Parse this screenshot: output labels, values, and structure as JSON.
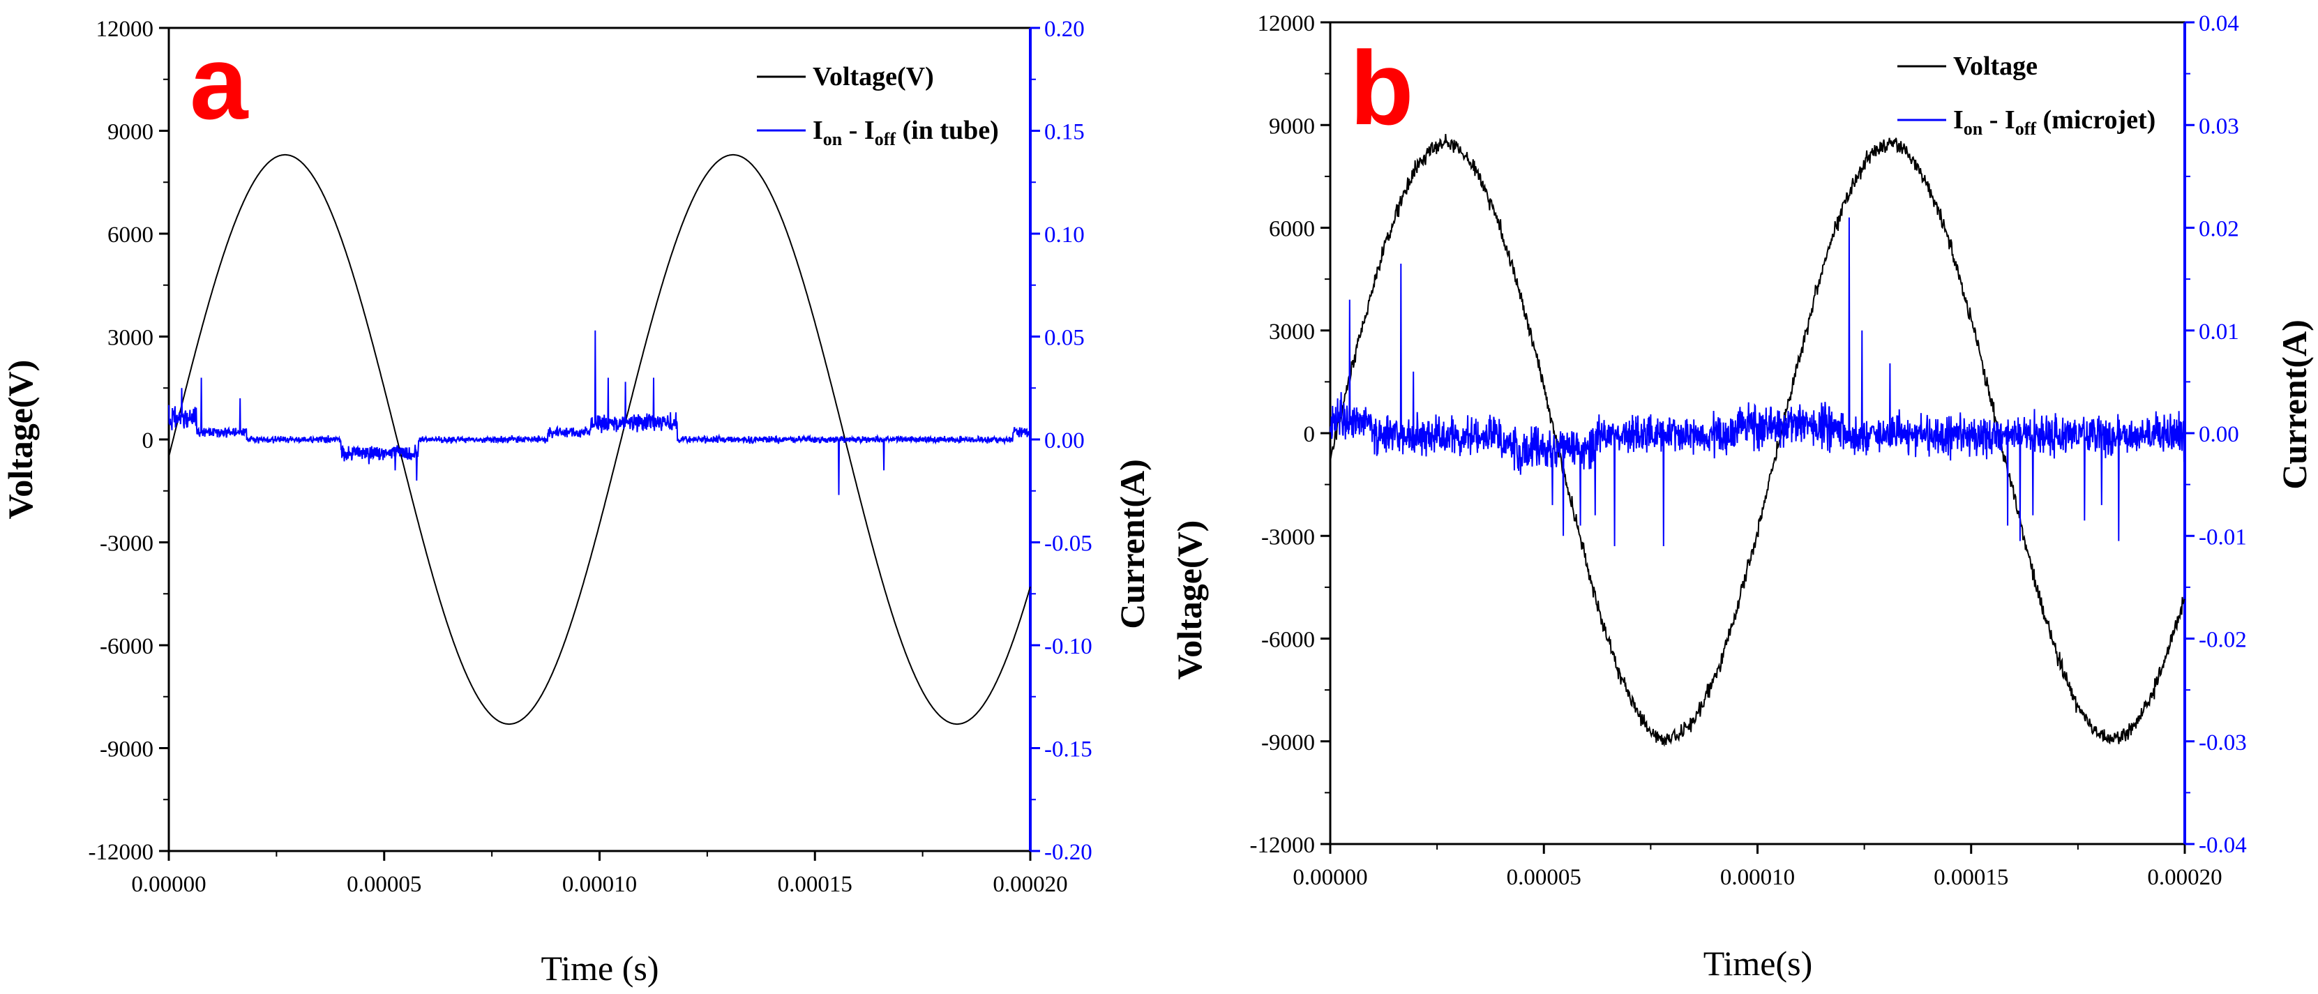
{
  "chart_data": [
    {
      "panel_label": "a",
      "type": "line",
      "xlabel": "Time (s)",
      "ylabel_left": "Voltage(V)",
      "ylabel_right": "Current(A)",
      "xlim": [
        0,
        0.0002
      ],
      "ylim_left": [
        -12000,
        12000
      ],
      "ylim_right": [
        -0.2,
        0.2
      ],
      "x_ticks": [
        "0.00000",
        "0.00005",
        "0.00010",
        "0.00015",
        "0.00020"
      ],
      "y_ticks_left": [
        "12000",
        "9000",
        "6000",
        "3000",
        "0",
        "-3000",
        "-6000",
        "-9000",
        "-12000"
      ],
      "y_ticks_right": [
        "0.20",
        "0.15",
        "0.10",
        "0.05",
        "0.00",
        "-0.05",
        "-0.10",
        "-0.15",
        "-0.20"
      ],
      "legend": {
        "placement": "top-right",
        "voltage_label": "Voltage(V)",
        "current_label": {
          "base": "I",
          "sub1": "on",
          "mid": " - I",
          "sub2": "off",
          "tail": " (in tube)"
        }
      },
      "series": [
        {
          "name": "Voltage(V)",
          "axis": "left",
          "color": "#000000",
          "model": "sine",
          "amplitude": 8300,
          "period": 0.000104,
          "phase_peak_x": 2.7e-05,
          "noise": 0
        },
        {
          "name": "I_on - I_off (in tube)",
          "axis": "right",
          "color": "#0000ff",
          "baseline": 0.0,
          "noise": 0.0015,
          "bumps": [
            {
              "x0": 0.0,
              "x1": 6.5e-06,
              "level": 0.012
            },
            {
              "x0": 6.5e-06,
              "x1": 1.8e-05,
              "level": 0.004
            },
            {
              "x0": 4e-05,
              "x1": 5.8e-05,
              "level": -0.007
            },
            {
              "x0": 8.8e-05,
              "x1": 9.8e-05,
              "level": 0.004
            },
            {
              "x0": 9.8e-05,
              "x1": 0.000118,
              "level": 0.009
            },
            {
              "x0": 0.000196,
              "x1": 0.0002,
              "level": 0.004
            }
          ],
          "spikes": [
            {
              "x": 3e-06,
              "y": 0.025
            },
            {
              "x": 7.5e-06,
              "y": 0.03
            },
            {
              "x": 1.65e-05,
              "y": 0.02
            },
            {
              "x": 4.2e-05,
              "y": -0.008
            },
            {
              "x": 4.65e-05,
              "y": -0.012
            },
            {
              "x": 5.25e-05,
              "y": -0.015
            },
            {
              "x": 5.75e-05,
              "y": -0.02
            },
            {
              "x": 9.9e-05,
              "y": 0.053
            },
            {
              "x": 0.000102,
              "y": 0.03
            },
            {
              "x": 0.000106,
              "y": 0.028
            },
            {
              "x": 0.0001125,
              "y": 0.03
            },
            {
              "x": 0.0001555,
              "y": -0.027
            },
            {
              "x": 0.000166,
              "y": -0.015
            }
          ]
        }
      ]
    },
    {
      "panel_label": "b",
      "type": "line",
      "xlabel": "Time(s)",
      "ylabel_left": "Voltage(V)",
      "ylabel_right": "Current(A)",
      "xlim": [
        0,
        0.0002
      ],
      "ylim_left": [
        -12000,
        12000
      ],
      "ylim_right": [
        -0.04,
        0.04
      ],
      "x_ticks": [
        "0.00000",
        "0.00005",
        "0.00010",
        "0.00015",
        "0.00020"
      ],
      "y_ticks_left": [
        "12000",
        "9000",
        "6000",
        "3000",
        "0",
        "-3000",
        "-6000",
        "-9000",
        "-12000"
      ],
      "y_ticks_right": [
        "0.04",
        "0.03",
        "0.02",
        "0.01",
        "0.00",
        "-0.01",
        "-0.02",
        "-0.03",
        "-0.04"
      ],
      "legend": {
        "placement": "top-right",
        "voltage_label": "Voltage",
        "current_label": {
          "base": "I",
          "sub1": "on",
          "mid": " - I",
          "sub2": "off",
          "tail": " (microjet)"
        }
      },
      "series": [
        {
          "name": "Voltage",
          "axis": "left",
          "color": "#000000",
          "model": "sine",
          "amplitude": 8700,
          "period": 0.000104,
          "phase_peak_x": 2.7e-05,
          "offset": -250,
          "noise": 200
        },
        {
          "name": "I_on - I_off (microjet)",
          "axis": "right",
          "color": "#0000ff",
          "baseline": -0.0002,
          "noise": 0.0018,
          "bumps": [
            {
              "x0": 0.0,
              "x1": 1e-05,
              "level": 0.0015
            },
            {
              "x0": 4e-05,
              "x1": 6.2e-05,
              "level": -0.0015
            },
            {
              "x0": 9.5e-05,
              "x1": 0.00012,
              "level": 0.001
            }
          ],
          "spikes": [
            {
              "x": 2.5e-06,
              "y": 0.004
            },
            {
              "x": 4.5e-06,
              "y": 0.013
            },
            {
              "x": 1.65e-05,
              "y": 0.0165
            },
            {
              "x": 1.95e-05,
              "y": 0.006
            },
            {
              "x": 5.2e-05,
              "y": -0.007
            },
            {
              "x": 5.45e-05,
              "y": -0.01
            },
            {
              "x": 5.85e-05,
              "y": -0.009
            },
            {
              "x": 6.2e-05,
              "y": -0.008
            },
            {
              "x": 6.65e-05,
              "y": -0.011
            },
            {
              "x": 7.8e-05,
              "y": -0.011
            },
            {
              "x": 0.0001215,
              "y": 0.021
            },
            {
              "x": 0.0001245,
              "y": 0.01
            },
            {
              "x": 0.000131,
              "y": 0.0068
            },
            {
              "x": 0.0001585,
              "y": -0.009
            },
            {
              "x": 0.0001615,
              "y": -0.0105
            },
            {
              "x": 0.0001645,
              "y": -0.008
            },
            {
              "x": 0.0001765,
              "y": -0.0085
            },
            {
              "x": 0.0001805,
              "y": -0.007
            },
            {
              "x": 0.0001845,
              "y": -0.0105
            }
          ]
        }
      ]
    }
  ]
}
